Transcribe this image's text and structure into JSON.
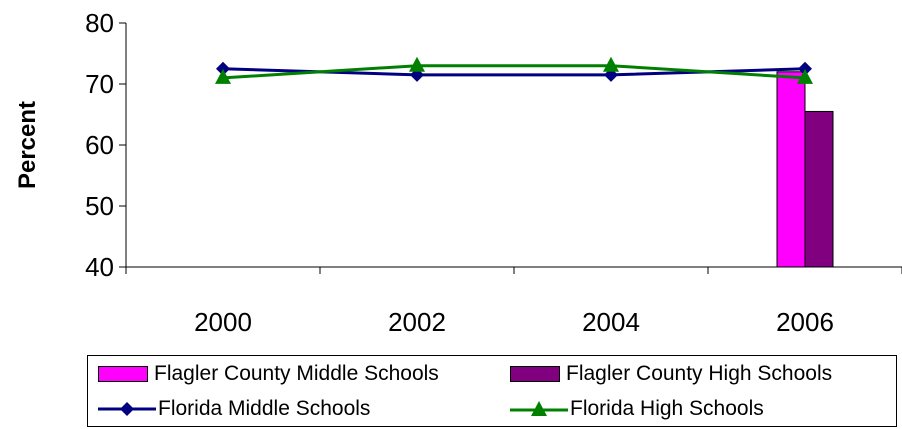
{
  "colors": {
    "flagler_middle": "#FF00FF",
    "flagler_high": "#800080",
    "florida_middle": "#000080",
    "florida_high": "#008000",
    "axis": "#000000"
  },
  "chart_data": {
    "type": "line",
    "title": "",
    "xlabel": "",
    "ylabel": "Percent",
    "ylim": [
      40,
      80
    ],
    "yticks": [
      "40",
      "50",
      "60",
      "70",
      "80"
    ],
    "categories": [
      "2000",
      "2002",
      "2004",
      "2006"
    ],
    "grid": false,
    "legend_position": "bottom",
    "series": [
      {
        "name": "Flagler County Middle Schools",
        "type": "bar",
        "values": [
          null,
          null,
          null,
          72
        ],
        "color": "#FF00FF"
      },
      {
        "name": "Flagler County High Schools",
        "type": "bar",
        "values": [
          null,
          null,
          null,
          65.5
        ],
        "color": "#800080"
      },
      {
        "name": "Florida Middle Schools",
        "type": "line",
        "marker": "diamond",
        "values": [
          72.5,
          71.5,
          71.5,
          72.5
        ],
        "color": "#000080"
      },
      {
        "name": "Florida High Schools",
        "type": "line",
        "marker": "triangle",
        "values": [
          71,
          73,
          73,
          71
        ],
        "color": "#008000"
      }
    ]
  }
}
